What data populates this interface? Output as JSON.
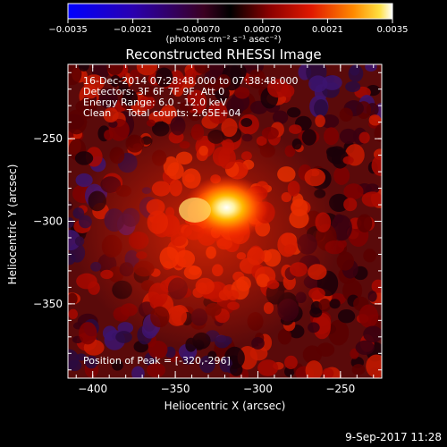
{
  "title": "Reconstructed RHESSI Image",
  "colorbar": {
    "tick_labels": [
      "−0.0035",
      "−0.0021",
      "−0.00070",
      "0.00070",
      "0.0021",
      "0.0035"
    ],
    "units": "(photons cm⁻² s⁻¹ asec⁻²)"
  },
  "info": {
    "time": "16-Dec-2014 07:28:48.000 to 07:38:48.000",
    "detectors": "Detectors: 3F 6F 7F 9F, Att 0",
    "energy": "Energy Range: 6.0 - 12.0 keV",
    "method": "Clean     Total counts: 2.65E+04"
  },
  "peak_label": "Position of Peak = [-320,-296]",
  "axes": {
    "xlabel": "Heliocentric X (arcsec)",
    "ylabel": "Heliocentric Y (arcsec)",
    "xticks": [
      "−400",
      "−350",
      "−300",
      "−250"
    ],
    "yticks": [
      "−250",
      "−300",
      "−350"
    ],
    "xlim": [
      -415,
      -225
    ],
    "ylim": [
      -395,
      -205
    ]
  },
  "peak": {
    "x": -320,
    "y": -296
  },
  "timestamp": "9-Sep-2017 11:28"
}
